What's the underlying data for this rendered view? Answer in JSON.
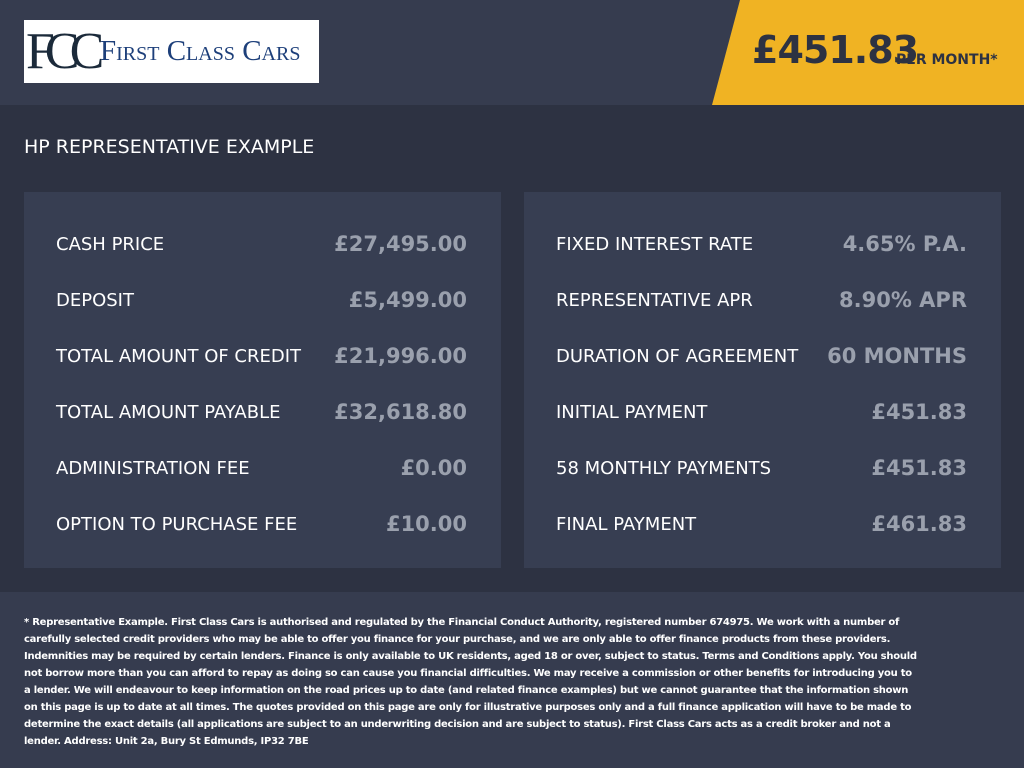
{
  "header": {
    "logo": {
      "monogram": "FCC",
      "name": "First Class Cars"
    },
    "price": "£451.83",
    "price_note": "PER MONTH*"
  },
  "section_title": "HP REPRESENTATIVE EXAMPLE",
  "left_panel": {
    "rows": [
      [
        "CASH PRICE",
        "£27,495.00"
      ],
      [
        "DEPOSIT",
        "£5,499.00"
      ],
      [
        "TOTAL AMOUNT OF CREDIT",
        "£21,996.00"
      ],
      [
        "TOTAL AMOUNT PAYABLE",
        "£32,618.80"
      ],
      [
        "ADMINISTRATION FEE",
        "£0.00"
      ],
      [
        "OPTION TO PURCHASE FEE",
        "£10.00"
      ]
    ]
  },
  "right_panel": {
    "rows": [
      [
        "FIXED INTEREST RATE",
        "4.65% P.A."
      ],
      [
        "REPRESENTATIVE APR",
        "8.90% APR"
      ],
      [
        "DURATION OF AGREEMENT",
        "60 MONTHS"
      ],
      [
        "INITIAL PAYMENT",
        "£451.83"
      ],
      [
        "58 MONTHLY PAYMENTS",
        "£451.83"
      ],
      [
        "FINAL PAYMENT",
        "£461.83"
      ]
    ]
  },
  "disclaimer": "* Representative Example. First Class Cars is authorised and regulated by the Financial Conduct Authority, registered number 674975. We work with a number of carefully selected credit providers who may be able to offer you finance for your purchase, and we are only able to offer finance products from these providers. Indemnities may be required by certain lenders. Finance is only available to UK residents, aged 18 or over, subject to status. Terms and Conditions apply. You should not borrow more than you can afford to repay as doing so can cause you financial difficulties. We may receive a commission or other benefits for introducing you to a lender. We will endeavour to keep information on the road prices up to date (and related finance examples) but we cannot guarantee that the information shown on this page is up to date at all times. The quotes provided on this page are only for illustrative purposes only and a full finance application will have to be made to determine the exact details (all applications are subject to an underwriting decision and are subject to status). First Class Cars acts as a credit broker and not a lender. Address: Unit 2a, Bury St Edmunds, IP32 7BE"
}
